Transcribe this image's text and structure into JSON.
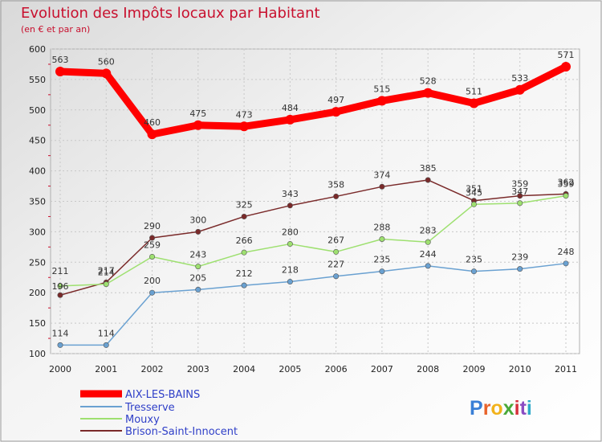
{
  "header": {
    "title": "Evolution des Impôts locaux par Habitant",
    "subtitle": "(en € et par an)"
  },
  "logo": {
    "text": "Proxiti"
  },
  "chart_data": {
    "type": "line",
    "title": "Evolution des Impôts locaux par Habitant",
    "subtitle": "(en € et par an)",
    "xlabel": "",
    "ylabel": "",
    "categories": [
      "2000",
      "2001",
      "2002",
      "2003",
      "2004",
      "2005",
      "2006",
      "2007",
      "2008",
      "2009",
      "2010",
      "2011"
    ],
    "ylim": [
      100,
      600
    ],
    "yticks": [
      100,
      150,
      200,
      250,
      300,
      350,
      400,
      450,
      500,
      550,
      600
    ],
    "grid": true,
    "legend_position": "bottom-left",
    "series": [
      {
        "name": "AIX-LES-BAINS",
        "color": "#ff0000",
        "values": [
          563,
          560,
          460,
          475,
          473,
          484,
          497,
          515,
          528,
          511,
          533,
          571
        ]
      },
      {
        "name": "Tresserve",
        "color": "#6aa1d1",
        "values": [
          114,
          114,
          200,
          205,
          212,
          218,
          227,
          235,
          244,
          235,
          239,
          248
        ]
      },
      {
        "name": "Mouxy",
        "color": "#9ee070",
        "values": [
          211,
          214,
          259,
          243,
          266,
          280,
          267,
          288,
          283,
          345,
          347,
          359
        ]
      },
      {
        "name": "Brison-Saint-Innocent",
        "color": "#7a2a2a",
        "values": [
          196,
          217,
          290,
          300,
          325,
          343,
          358,
          374,
          385,
          351,
          359,
          362
        ]
      }
    ]
  }
}
